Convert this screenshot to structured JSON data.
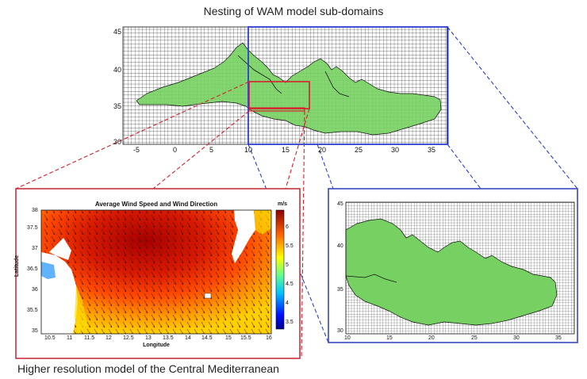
{
  "figure": {
    "title": "Nesting of WAM model sub-domains",
    "caption": "Higher resolution model of the Central Mediterranean"
  },
  "top_map": {
    "x_ticks": [
      "-5",
      "0",
      "5",
      "10",
      "15",
      "20",
      "25",
      "30",
      "35"
    ],
    "y_ticks": [
      "45",
      "40",
      "35",
      "30"
    ]
  },
  "wind_panel": {
    "title": "Average Wind Speed and Wind Direction",
    "xlabel": "Longitude",
    "ylabel": "Latitude",
    "x_ticks": [
      "10.5",
      "11",
      "11.5",
      "12",
      "12.5",
      "13",
      "13.5",
      "14",
      "14.5",
      "15",
      "15.5",
      "16"
    ],
    "y_ticks": [
      "38",
      "37.5",
      "37",
      "36.5",
      "36",
      "35.5",
      "35"
    ],
    "colorbar_unit": "m/s",
    "colorbar_ticks": [
      "6",
      "5.5",
      "5",
      "4.5",
      "4",
      "3.5"
    ]
  },
  "zoom_map": {
    "x_ticks": [
      "10",
      "15",
      "20",
      "25",
      "30",
      "35"
    ],
    "y_ticks": [
      "45",
      "40",
      "35",
      "30"
    ]
  },
  "colors": {
    "land": "#77d162",
    "grid": "#555555",
    "red_box": "#d8202c",
    "blue_box": "#2b3fd0",
    "panel_border_red": "#c8303c",
    "panel_border_blue": "#3a47c0"
  }
}
